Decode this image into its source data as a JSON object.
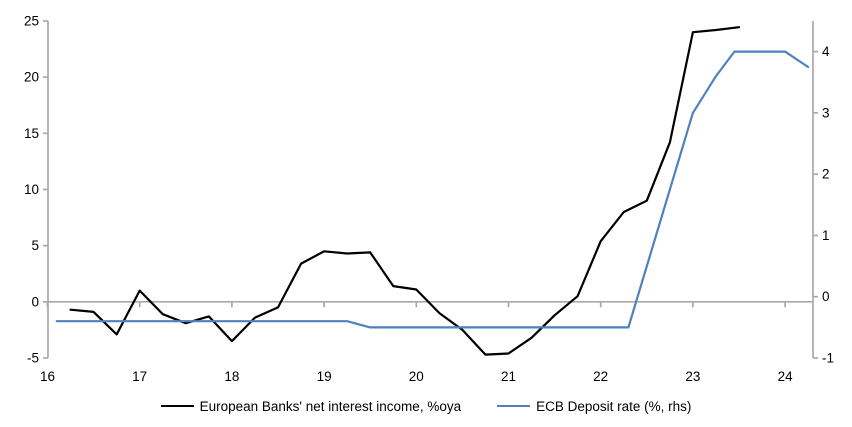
{
  "chart_data": {
    "type": "line",
    "title": "",
    "x_axis": {
      "ticks": [
        16,
        17,
        18,
        19,
        20,
        21,
        22,
        23,
        24
      ],
      "range": [
        16,
        24.35
      ]
    },
    "left_axis": {
      "ticks": [
        -5,
        0,
        5,
        10,
        15,
        20,
        25
      ],
      "range": [
        -5,
        25
      ]
    },
    "right_axis": {
      "ticks": [
        -1,
        0,
        1,
        2,
        3,
        4
      ],
      "range": [
        -1,
        4.5
      ]
    },
    "grid": "zero-line-only",
    "legend_position": "bottom",
    "series": [
      {
        "name": "European Banks' net interest income, %oya",
        "axis": "left",
        "color": "#000000",
        "x": [
          16.25,
          16.5,
          16.75,
          17.0,
          17.25,
          17.5,
          17.75,
          18.0,
          18.25,
          18.5,
          18.75,
          19.0,
          19.25,
          19.5,
          19.75,
          20.0,
          20.25,
          20.5,
          20.75,
          21.0,
          21.25,
          21.5,
          21.75,
          22.0,
          22.25,
          22.5,
          22.75,
          23.0,
          23.25,
          23.5
        ],
        "values": [
          -0.7,
          -0.9,
          -2.9,
          1.0,
          -1.1,
          -1.9,
          -1.3,
          -3.5,
          -1.4,
          -0.5,
          3.4,
          4.5,
          4.3,
          4.4,
          1.4,
          1.1,
          -1.0,
          -2.5,
          -4.7,
          -4.6,
          -3.2,
          -1.2,
          0.5,
          5.4,
          8.0,
          9.0,
          14.2,
          24.0,
          24.2,
          24.45
        ]
      },
      {
        "name": "ECB Deposit rate (%, rhs)",
        "axis": "right",
        "color": "#4F81BD",
        "x": [
          16.1,
          19.25,
          19.5,
          22.3,
          23.0,
          23.25,
          23.45,
          24.0,
          24.25
        ],
        "values": [
          -0.4,
          -0.4,
          -0.5,
          -0.5,
          3.0,
          3.6,
          4.0,
          4.0,
          3.75
        ]
      }
    ]
  },
  "colors": {
    "axis": "#A9A9A9",
    "background": "#FFFFFF",
    "text": "#000000"
  }
}
